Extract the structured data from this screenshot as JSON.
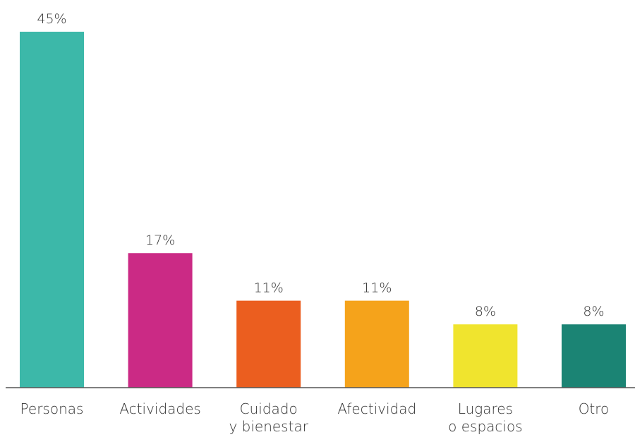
{
  "chart_data": {
    "type": "bar",
    "categories": [
      [
        "Personas"
      ],
      [
        "Actividades"
      ],
      [
        "Cuidado",
        "y bienestar"
      ],
      [
        "Afectividad"
      ],
      [
        "Lugares",
        "o espacios"
      ],
      [
        "Otro"
      ]
    ],
    "values": [
      45,
      17,
      11,
      11,
      8,
      8
    ],
    "value_labels": [
      "45%",
      "17%",
      "11%",
      "11%",
      "8%",
      "8%"
    ],
    "colors": [
      "#3cb8a9",
      "#cb2a85",
      "#eb5e1f",
      "#f5a31b",
      "#f0e42e",
      "#1b8474"
    ],
    "baseline_color": "#555555",
    "title": "",
    "xlabel": "",
    "ylabel": "",
    "ylim": [
      0,
      45
    ],
    "grid": false,
    "legend": "none"
  }
}
